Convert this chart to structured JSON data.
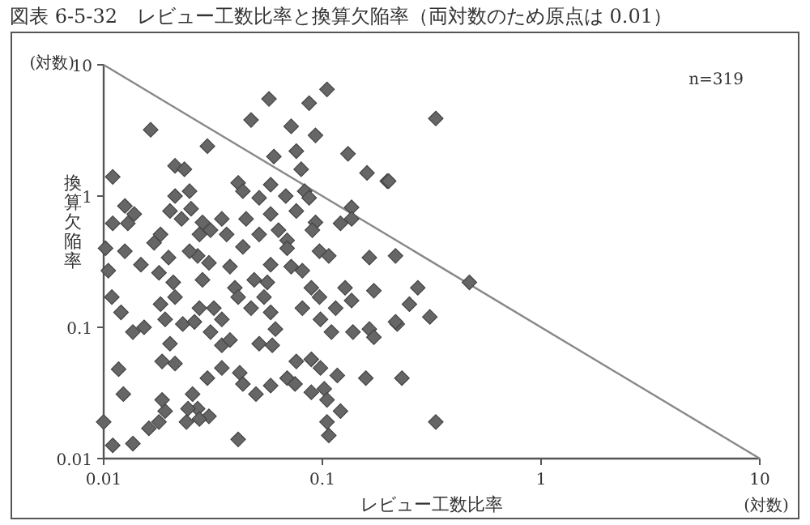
{
  "chart_data": {
    "type": "scatter",
    "title": "図表 6-5-32　レビュー工数比率と換算欠陥率（両対数のため原点は 0.01）",
    "xlabel": "レビュー工数比率",
    "ylabel": "換算欠陥率",
    "log": "xy",
    "xlim": [
      0.01,
      10
    ],
    "ylim": [
      0.01,
      10
    ],
    "xticks": [
      0.01,
      0.1,
      1,
      10
    ],
    "yticks": [
      0.01,
      0.1,
      1,
      10
    ],
    "grid": false,
    "annotations": [
      "n=319",
      "(対数)",
      "(対数)"
    ],
    "series": [
      {
        "marker": "diamond",
        "color": "#666666",
        "x": [
          0.0164,
          0.011,
          0.0298,
          0.0472,
          0.057,
          0.072,
          0.087,
          0.105,
          0.093,
          0.06,
          0.076,
          0.08,
          0.131,
          0.16,
          0.198,
          0.0212,
          0.0234,
          0.0247,
          0.0212,
          0.0125,
          0.0138,
          0.011,
          0.0129,
          0.017,
          0.0182,
          0.0201,
          0.0227,
          0.0251,
          0.0412,
          0.0433,
          0.0514,
          0.058,
          0.068,
          0.076,
          0.083,
          0.087,
          0.093,
          0.09,
          0.121,
          0.136,
          0.136,
          0.097,
          0.107,
          0.164,
          0.216,
          0.0283,
          0.0308,
          0.0347,
          0.0365,
          0.0274,
          0.0448,
          0.0514,
          0.063,
          0.058,
          0.069,
          0.0433,
          0.0269,
          0.0102,
          0.33,
          0.201,
          0.0125,
          0.0105,
          0.0148,
          0.0198,
          0.0247,
          0.0303,
          0.0109,
          0.012,
          0.0136,
          0.0153,
          0.0182,
          0.0208,
          0.0212,
          0.0179,
          0.0191,
          0.023,
          0.026,
          0.0283,
          0.0274,
          0.0319,
          0.0308,
          0.0347,
          0.0378,
          0.0398,
          0.0412,
          0.0488,
          0.0472,
          0.056,
          0.0541,
          0.058,
          0.061,
          0.058,
          0.069,
          0.072,
          0.081,
          0.089,
          0.097,
          0.115,
          0.098,
          0.127,
          0.136,
          0.172,
          0.25,
          0.273,
          0.138,
          0.164,
          0.172,
          0.22,
          0.11,
          0.081,
          0.0117,
          0.0123,
          0.0185,
          0.0212,
          0.0201,
          0.0255,
          0.0269,
          0.0298,
          0.0303,
          0.0347,
          0.0347,
          0.0378,
          0.0419,
          0.0433,
          0.0497,
          0.0514,
          0.058,
          0.059,
          0.069,
          0.075,
          0.076,
          0.089,
          0.089,
          0.098,
          0.102,
          0.105,
          0.117,
          0.105,
          0.107,
          0.121,
          0.158,
          0.231,
          0.01,
          0.011,
          0.0136,
          0.0161,
          0.0179,
          0.0191,
          0.0185,
          0.0239,
          0.0274,
          0.0412,
          0.0243,
          0.216,
          0.31,
          0.47,
          0.33
        ],
        "values": [
          3.2,
          1.4,
          2.4,
          3.8,
          5.5,
          3.4,
          5.1,
          6.5,
          2.9,
          2.0,
          2.2,
          1.6,
          2.1,
          1.5,
          1.3,
          1.7,
          1.6,
          1.09,
          1.0,
          0.84,
          0.73,
          0.62,
          0.62,
          0.44,
          0.51,
          0.77,
          0.67,
          0.8,
          1.26,
          1.09,
          0.97,
          1.22,
          1.0,
          0.77,
          1.09,
          0.97,
          0.63,
          0.55,
          0.62,
          0.82,
          0.67,
          0.38,
          0.35,
          0.34,
          0.35,
          0.63,
          0.55,
          0.67,
          0.51,
          0.51,
          0.67,
          0.51,
          0.55,
          0.73,
          0.46,
          0.41,
          0.35,
          0.4,
          3.9,
          1.3,
          0.38,
          0.27,
          0.3,
          0.34,
          0.38,
          0.31,
          0.17,
          0.13,
          0.092,
          0.1,
          0.15,
          0.22,
          0.17,
          0.26,
          0.115,
          0.106,
          0.11,
          0.23,
          0.14,
          0.14,
          0.092,
          0.115,
          0.29,
          0.2,
          0.17,
          0.23,
          0.14,
          0.22,
          0.17,
          0.13,
          0.097,
          0.3,
          0.4,
          0.29,
          0.27,
          0.2,
          0.17,
          0.14,
          0.115,
          0.2,
          0.16,
          0.19,
          0.15,
          0.2,
          0.092,
          0.097,
          0.084,
          0.106,
          0.092,
          0.14,
          0.048,
          0.031,
          0.055,
          0.053,
          0.075,
          0.031,
          0.024,
          0.041,
          0.021,
          0.073,
          0.049,
          0.08,
          0.045,
          0.037,
          0.031,
          0.075,
          0.036,
          0.073,
          0.041,
          0.037,
          0.055,
          0.057,
          0.032,
          0.049,
          0.034,
          0.028,
          0.043,
          0.019,
          0.015,
          0.023,
          0.041,
          0.041,
          0.019,
          0.0126,
          0.013,
          0.017,
          0.019,
          0.023,
          0.028,
          0.019,
          0.02,
          0.014,
          0.024,
          0.11,
          0.12,
          0.22,
          0.019
        ]
      },
      {
        "type": "line",
        "marker": "none",
        "color": "#888888",
        "x": [
          0.01,
          10
        ],
        "values": [
          10,
          0.01
        ]
      }
    ]
  }
}
